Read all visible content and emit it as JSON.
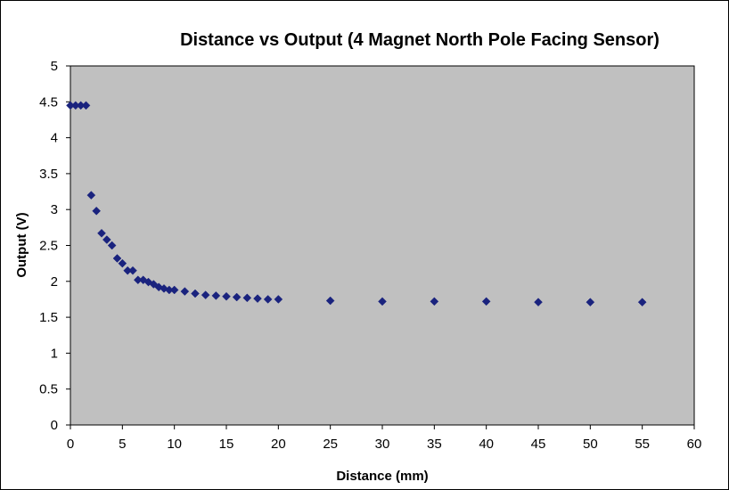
{
  "chart_data": {
    "type": "scatter",
    "title": "Distance vs Output (4 Magnet North Pole Facing Sensor)",
    "xlabel": "Distance (mm)",
    "ylabel": "Output (V)",
    "xlim": [
      0,
      60
    ],
    "ylim": [
      0,
      5
    ],
    "xticks": [
      "0",
      "5",
      "10",
      "15",
      "20",
      "25",
      "30",
      "35",
      "40",
      "45",
      "50",
      "55",
      "60"
    ],
    "yticks": [
      "0",
      "0.5",
      "1",
      "1.5",
      "2",
      "2.5",
      "3",
      "3.5",
      "4",
      "4.5",
      "5"
    ],
    "grid": false,
    "legend": "none",
    "colors": {
      "marker": "#1a237e",
      "plot_background": "#c0c0c0",
      "axis": "#000000"
    },
    "series": [
      {
        "marker": "diamond",
        "x": [
          0,
          0.5,
          1,
          1.5,
          2,
          2.5,
          3,
          3.5,
          4,
          4.5,
          5,
          5.5,
          6,
          6.5,
          7,
          7.5,
          8,
          8.5,
          9,
          9.5,
          10,
          11,
          12,
          13,
          14,
          15,
          16,
          17,
          18,
          19,
          20,
          25,
          30,
          35,
          40,
          45,
          50,
          55
        ],
        "y": [
          4.45,
          4.45,
          4.45,
          4.45,
          3.2,
          2.98,
          2.67,
          2.58,
          2.5,
          2.32,
          2.25,
          2.15,
          2.15,
          2.02,
          2.02,
          1.99,
          1.96,
          1.92,
          1.9,
          1.88,
          1.88,
          1.86,
          1.83,
          1.81,
          1.8,
          1.79,
          1.78,
          1.77,
          1.76,
          1.75,
          1.75,
          1.73,
          1.72,
          1.72,
          1.72,
          1.71,
          1.71,
          1.71
        ]
      }
    ]
  }
}
